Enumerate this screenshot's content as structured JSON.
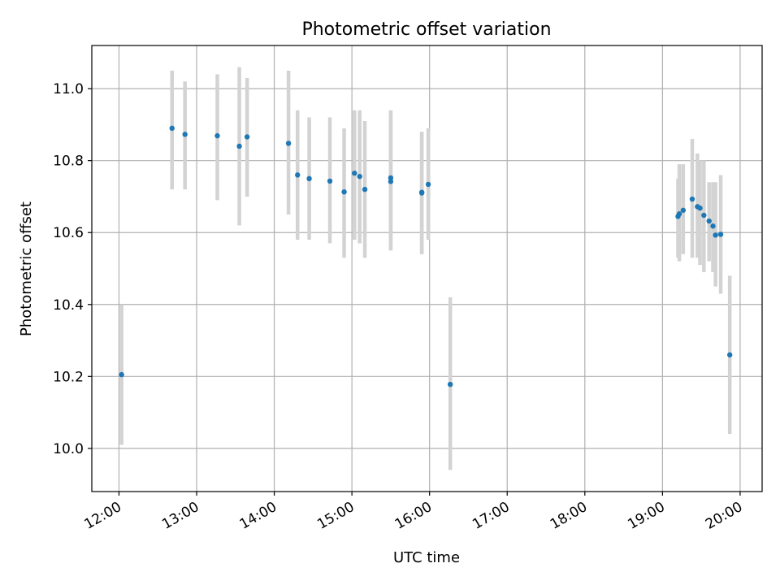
{
  "chart_data": {
    "type": "scatter",
    "title": "Photometric offset variation",
    "xlabel": "UTC time",
    "ylabel": "Photometric offset",
    "xlim": [
      "11:39",
      "20:17"
    ],
    "ylim": [
      9.88,
      11.12
    ],
    "x_ticks": [
      "12:00",
      "13:00",
      "14:00",
      "15:00",
      "16:00",
      "17:00",
      "18:00",
      "19:00",
      "20:00"
    ],
    "y_ticks": [
      "10.0",
      "10.2",
      "10.4",
      "10.6",
      "10.8",
      "11.0"
    ],
    "grid": true,
    "colors": {
      "points": "#1f77b4",
      "error_bars": "#d3d3d3",
      "grid": "#b0b0b0"
    },
    "points": [
      {
        "x": "12:02",
        "y": 10.205,
        "ylow": 10.01,
        "yhigh": 10.4
      },
      {
        "x": "12:41",
        "y": 10.89,
        "ylow": 10.72,
        "yhigh": 11.05
      },
      {
        "x": "12:51",
        "y": 10.873,
        "ylow": 10.72,
        "yhigh": 11.02
      },
      {
        "x": "13:16",
        "y": 10.869,
        "ylow": 10.69,
        "yhigh": 11.04
      },
      {
        "x": "13:33",
        "y": 10.84,
        "ylow": 10.62,
        "yhigh": 11.06
      },
      {
        "x": "13:39",
        "y": 10.866,
        "ylow": 10.7,
        "yhigh": 11.03
      },
      {
        "x": "14:11",
        "y": 10.848,
        "ylow": 10.65,
        "yhigh": 11.05
      },
      {
        "x": "14:18",
        "y": 10.76,
        "ylow": 10.58,
        "yhigh": 10.94
      },
      {
        "x": "14:27",
        "y": 10.75,
        "ylow": 10.58,
        "yhigh": 10.92
      },
      {
        "x": "14:43",
        "y": 10.743,
        "ylow": 10.57,
        "yhigh": 10.92
      },
      {
        "x": "14:54",
        "y": 10.713,
        "ylow": 10.53,
        "yhigh": 10.89
      },
      {
        "x": "15:02",
        "y": 10.765,
        "ylow": 10.58,
        "yhigh": 10.94
      },
      {
        "x": "15:06",
        "y": 10.756,
        "ylow": 10.57,
        "yhigh": 10.94
      },
      {
        "x": "15:10",
        "y": 10.72,
        "ylow": 10.53,
        "yhigh": 10.91
      },
      {
        "x": "15:30",
        "y": 10.752,
        "ylow": 10.56,
        "yhigh": 10.94
      },
      {
        "x": "15:30",
        "y": 10.742,
        "ylow": 10.55,
        "yhigh": 10.93
      },
      {
        "x": "15:54",
        "y": 10.71,
        "ylow": 10.54,
        "yhigh": 10.88
      },
      {
        "x": "15:54",
        "y": 10.712,
        "ylow": 10.54,
        "yhigh": 10.88
      },
      {
        "x": "15:59",
        "y": 10.734,
        "ylow": 10.58,
        "yhigh": 10.89
      },
      {
        "x": "16:16",
        "y": 10.178,
        "ylow": 9.94,
        "yhigh": 10.42
      },
      {
        "x": "19:12",
        "y": 10.645,
        "ylow": 10.53,
        "yhigh": 10.75
      },
      {
        "x": "19:13",
        "y": 10.652,
        "ylow": 10.52,
        "yhigh": 10.79
      },
      {
        "x": "19:16",
        "y": 10.662,
        "ylow": 10.54,
        "yhigh": 10.79
      },
      {
        "x": "19:23",
        "y": 10.693,
        "ylow": 10.53,
        "yhigh": 10.86
      },
      {
        "x": "19:27",
        "y": 10.672,
        "ylow": 10.53,
        "yhigh": 10.82
      },
      {
        "x": "19:29",
        "y": 10.668,
        "ylow": 10.51,
        "yhigh": 10.8
      },
      {
        "x": "19:32",
        "y": 10.648,
        "ylow": 10.49,
        "yhigh": 10.8
      },
      {
        "x": "19:36",
        "y": 10.632,
        "ylow": 10.52,
        "yhigh": 10.74
      },
      {
        "x": "19:39",
        "y": 10.618,
        "ylow": 10.49,
        "yhigh": 10.74
      },
      {
        "x": "19:41",
        "y": 10.593,
        "ylow": 10.45,
        "yhigh": 10.74
      },
      {
        "x": "19:45",
        "y": 10.595,
        "ylow": 10.43,
        "yhigh": 10.76
      },
      {
        "x": "19:52",
        "y": 10.26,
        "ylow": 10.04,
        "yhigh": 10.48
      }
    ]
  }
}
